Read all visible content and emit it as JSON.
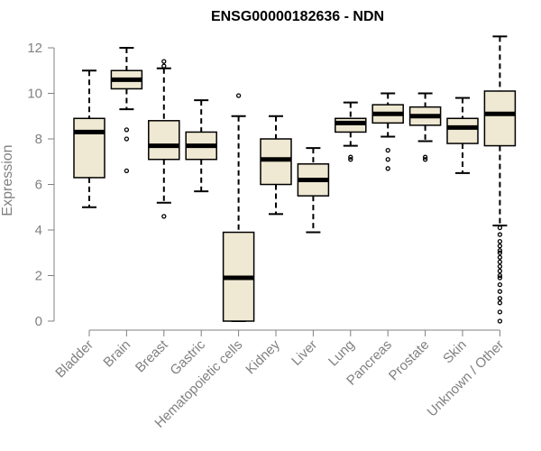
{
  "chart_data": {
    "type": "boxplot",
    "title": "ENSG00000182636 - NDN",
    "ylabel": "Expression",
    "ylim": [
      0,
      12.5
    ],
    "yticks": [
      0,
      2,
      4,
      6,
      8,
      10,
      12
    ],
    "colors": {
      "box_fill": "#efe8d2",
      "stroke": "#000000",
      "axis": "#808080"
    },
    "categories": [
      "Bladder",
      "Brain",
      "Breast",
      "Gastric",
      "Hematopoietic cells",
      "Kidney",
      "Liver",
      "Lung",
      "Pancreas",
      "Prostate",
      "Skin",
      "Unknown / Other"
    ],
    "boxes": [
      {
        "category": "Bladder",
        "min": 5.0,
        "q1": 6.3,
        "median": 8.3,
        "q3": 8.9,
        "max": 11.0,
        "outliers": []
      },
      {
        "category": "Brain",
        "min": 9.3,
        "q1": 10.2,
        "median": 10.6,
        "q3": 11.0,
        "max": 12.0,
        "outliers": [
          8.4,
          8.0,
          6.6
        ]
      },
      {
        "category": "Breast",
        "min": 5.2,
        "q1": 7.1,
        "median": 7.7,
        "q3": 8.8,
        "max": 11.1,
        "outliers": [
          11.4,
          11.2,
          4.6
        ]
      },
      {
        "category": "Gastric",
        "min": 5.7,
        "q1": 7.1,
        "median": 7.7,
        "q3": 8.3,
        "max": 9.7,
        "outliers": []
      },
      {
        "category": "Hematopoietic cells",
        "min": 0.0,
        "q1": 0.0,
        "median": 1.9,
        "q3": 3.9,
        "max": 9.0,
        "outliers": [
          9.9
        ]
      },
      {
        "category": "Kidney",
        "min": 4.7,
        "q1": 6.0,
        "median": 7.1,
        "q3": 8.0,
        "max": 9.0,
        "outliers": []
      },
      {
        "category": "Liver",
        "min": 3.9,
        "q1": 5.5,
        "median": 6.2,
        "q3": 6.9,
        "max": 7.6,
        "outliers": []
      },
      {
        "category": "Lung",
        "min": 7.7,
        "q1": 8.3,
        "median": 8.7,
        "q3": 8.9,
        "max": 9.6,
        "outliers": [
          7.2,
          7.1
        ]
      },
      {
        "category": "Pancreas",
        "min": 8.1,
        "q1": 8.7,
        "median": 9.1,
        "q3": 9.5,
        "max": 10.0,
        "outliers": [
          7.5,
          7.1,
          6.7
        ]
      },
      {
        "category": "Prostate",
        "min": 7.9,
        "q1": 8.6,
        "median": 9.0,
        "q3": 9.4,
        "max": 10.0,
        "outliers": [
          7.2,
          7.1
        ]
      },
      {
        "category": "Skin",
        "min": 6.5,
        "q1": 7.8,
        "median": 8.5,
        "q3": 8.9,
        "max": 9.8,
        "outliers": []
      },
      {
        "category": "Unknown / Other",
        "min": 4.2,
        "q1": 7.7,
        "median": 9.1,
        "q3": 10.1,
        "max": 12.5,
        "outliers": [
          4.1,
          3.8,
          3.5,
          3.3,
          3.1,
          3.0,
          2.8,
          2.6,
          2.4,
          2.2,
          2.0,
          1.9,
          1.6,
          1.3,
          1.0,
          0.8,
          0.4,
          0.0
        ]
      }
    ]
  }
}
